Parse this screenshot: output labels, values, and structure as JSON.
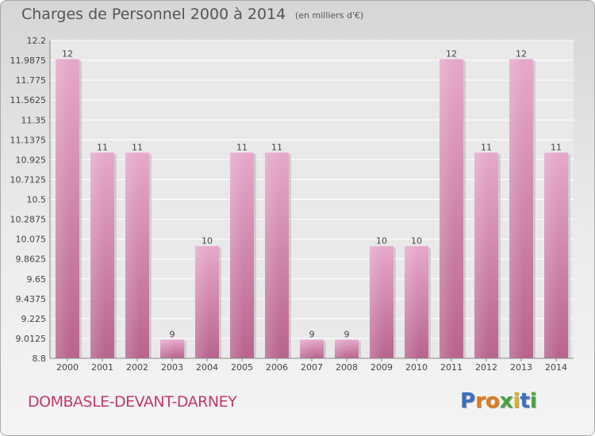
{
  "chart_data": {
    "type": "bar",
    "title": "Charges de Personnel 2000 à 2014",
    "unit": "(en milliers d'€)",
    "categories": [
      "2000",
      "2001",
      "2002",
      "2003",
      "2004",
      "2005",
      "2006",
      "2007",
      "2008",
      "2009",
      "2010",
      "2011",
      "2012",
      "2013",
      "2014"
    ],
    "values": [
      12,
      11,
      11,
      9,
      10,
      11,
      11,
      9,
      9,
      10,
      10,
      12,
      11,
      12,
      11
    ],
    "data_labels": [
      "12",
      "11",
      "11",
      "9",
      "10",
      "11",
      "11",
      "9",
      "9",
      "10",
      "10",
      "12",
      "11",
      "12",
      "11"
    ],
    "ylim": [
      8.8,
      12.2
    ],
    "yticks": [
      "12.2",
      "11.9875",
      "11.775",
      "11.5625",
      "11.35",
      "11.1375",
      "10.925",
      "10.7125",
      "10.5",
      "10.2875",
      "10.075",
      "9.8625",
      "9.65",
      "9.4375",
      "9.225",
      "9.0125",
      "8.8"
    ],
    "grid": true,
    "bar_color": "#cc7fab"
  },
  "commune": "DOMBASLE-DEVANT-DARNEY",
  "brand": {
    "letters": [
      "P",
      "r",
      "o",
      "x",
      "i",
      "t",
      "i"
    ],
    "colors": [
      "#3a6fc4",
      "#e07b1a",
      "#e07b1a",
      "#4aa33a",
      "#e0b21a",
      "#3a6fc4",
      "#4aa33a"
    ]
  }
}
